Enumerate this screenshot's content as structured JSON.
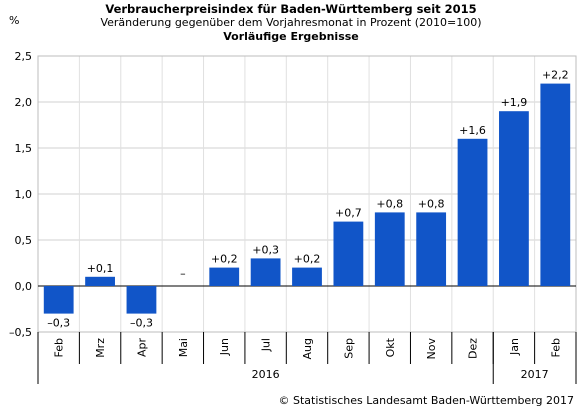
{
  "chart_data": {
    "type": "bar",
    "title": "Verbraucherpreisindex für Baden-Württemberg seit 2015",
    "subtitle": "Veränderung gegenüber dem Vorjahresmonat in Prozent (2010=100)",
    "subtitle2": "Vorläufige Ergebnisse",
    "ylabel": "%",
    "ylim": [
      -0.5,
      2.5
    ],
    "yticks": [
      -0.5,
      0.0,
      0.5,
      1.0,
      1.5,
      2.0,
      2.5
    ],
    "ytick_labels": [
      "–0,5",
      "0,0",
      "0,5",
      "1,0",
      "1,5",
      "2,0",
      "2,5"
    ],
    "categories": [
      "Feb",
      "Mrz",
      "Apr",
      "Mai",
      "Jun",
      "Jul",
      "Aug",
      "Sep",
      "Okt",
      "Nov",
      "Dez",
      "Jan",
      "Feb"
    ],
    "values": [
      -0.3,
      0.1,
      -0.3,
      0.0,
      0.2,
      0.3,
      0.2,
      0.7,
      0.8,
      0.8,
      1.6,
      1.9,
      2.2
    ],
    "data_labels": [
      "–0,3",
      "+0,1",
      "–0,3",
      "–",
      "+0,2",
      "+0,3",
      "+0,2",
      "+0,7",
      "+0,8",
      "+0,8",
      "+1,6",
      "+1,9",
      "+2,2"
    ],
    "year_groups": [
      {
        "label": "2016",
        "start": 0,
        "end": 10
      },
      {
        "label": "2017",
        "start": 11,
        "end": 12
      }
    ],
    "grid": true,
    "bar_color": "#1155c8"
  },
  "source": "© Statistisches Landesamt Baden-Württemberg 2017"
}
